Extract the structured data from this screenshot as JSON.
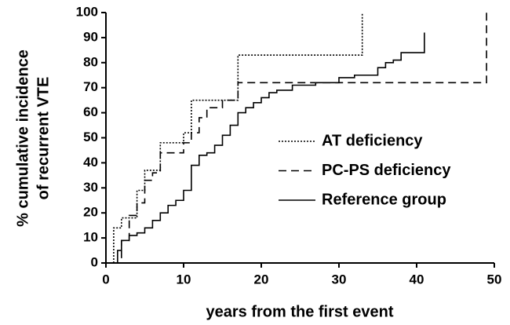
{
  "chart_data": {
    "type": "line",
    "step": true,
    "xlabel": "years from the first event",
    "ylabel": [
      "% cumulative incidence",
      "of recurrent VTE"
    ],
    "xlim": [
      0,
      50
    ],
    "xticks": [
      0,
      10,
      20,
      30,
      40,
      50
    ],
    "ylim": [
      0,
      100
    ],
    "yticks": [
      0,
      10,
      20,
      30,
      40,
      50,
      60,
      70,
      80,
      90,
      100
    ],
    "grid": false,
    "series": [
      {
        "name": "AT deficiency",
        "color": "#000000",
        "dash": "dotted",
        "x": [
          1,
          1,
          2,
          4,
          5,
          7,
          10,
          11,
          17,
          33,
          33
        ],
        "values": [
          0,
          14,
          18,
          29,
          37,
          48,
          52,
          65,
          83,
          83,
          100
        ]
      },
      {
        "name": "PC-PS deficiency",
        "color": "#000000",
        "dash": "dashed",
        "x": [
          1,
          2,
          3,
          4,
          5,
          6,
          7,
          9,
          10,
          11,
          12,
          13,
          15,
          17,
          49,
          49
        ],
        "values": [
          0,
          9,
          19,
          24,
          33,
          36,
          44,
          44,
          48,
          52,
          58,
          62,
          65,
          72,
          72,
          100
        ]
      },
      {
        "name": "Reference group",
        "color": "#000000",
        "dash": "solid",
        "x": [
          1,
          1.5,
          2,
          3,
          4,
          5,
          6,
          7,
          8,
          9,
          10,
          11,
          12,
          13,
          14,
          15,
          16,
          17,
          18,
          19,
          20,
          21,
          22,
          24,
          27,
          30,
          32,
          35,
          36,
          37,
          38,
          41,
          41
        ],
        "values": [
          0,
          5,
          9,
          11,
          12,
          14,
          17,
          20,
          23,
          25,
          29,
          39,
          43,
          44,
          47,
          51,
          55,
          60,
          62,
          64,
          66,
          68,
          69,
          71,
          72,
          74,
          75,
          78,
          80,
          81,
          84,
          84,
          92
        ]
      }
    ]
  }
}
